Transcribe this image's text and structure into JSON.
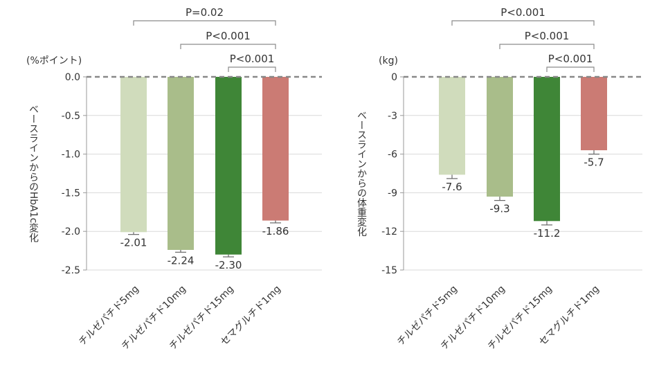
{
  "chart_data": [
    {
      "type": "bar",
      "unit_label": "(%ポイント)",
      "ylabel": "ベースラインからのHbA1c変化",
      "categories": [
        "チルゼパチド5mg",
        "チルゼパチド10mg",
        "チルゼパチド15mg",
        "セマグルチド1mg"
      ],
      "values": [
        -2.01,
        -2.24,
        -2.3,
        -1.86
      ],
      "error": [
        0.03,
        0.03,
        0.03,
        0.03
      ],
      "value_labels": [
        "-2.01",
        "-2.24",
        "-2.30",
        "-1.86"
      ],
      "ylim": [
        -2.5,
        0
      ],
      "yticks": [
        0,
        -0.5,
        -1.0,
        -1.5,
        -2.0,
        -2.5
      ],
      "ytick_labels": [
        "0.0",
        "-0.5",
        "-1.0",
        "-1.5",
        "-2.0",
        "-2.5"
      ],
      "colors": [
        "#d0dcbc",
        "#a9bd8a",
        "#3f8637",
        "#cb7b74"
      ],
      "grid": true,
      "significance": [
        {
          "from": 0,
          "to": 3,
          "label": "P=0.02"
        },
        {
          "from": 1,
          "to": 3,
          "label": "P<0.001"
        },
        {
          "from": 2,
          "to": 3,
          "label": "P<0.001"
        }
      ]
    },
    {
      "type": "bar",
      "unit_label": "(kg)",
      "ylabel": "ベースラインからの体重変化",
      "categories": [
        "チルゼパチド5mg",
        "チルゼパチド10mg",
        "チルゼパチド15mg",
        "セマグルチド1mg"
      ],
      "values": [
        -7.6,
        -9.3,
        -11.2,
        -5.7
      ],
      "error": [
        0.3,
        0.3,
        0.3,
        0.3
      ],
      "value_labels": [
        "-7.6",
        "-9.3",
        "-11.2",
        "-5.7"
      ],
      "ylim": [
        -15,
        0
      ],
      "yticks": [
        0,
        -3,
        -6,
        -9,
        -12,
        -15
      ],
      "ytick_labels": [
        "0",
        "-3",
        "-6",
        "-9",
        "-12",
        "-15"
      ],
      "colors": [
        "#d0dcbc",
        "#a9bd8a",
        "#3f8637",
        "#cb7b74"
      ],
      "grid": true,
      "significance": [
        {
          "from": 0,
          "to": 3,
          "label": "P<0.001"
        },
        {
          "from": 1,
          "to": 3,
          "label": "P<0.001"
        },
        {
          "from": 2,
          "to": 3,
          "label": "P<0.001"
        }
      ]
    }
  ]
}
